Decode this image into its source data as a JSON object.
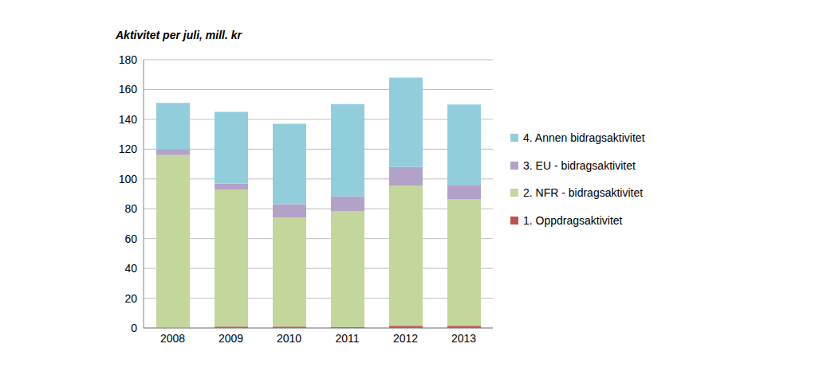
{
  "chart_data": {
    "type": "bar",
    "title": "Aktivitet per juli, mill. kr",
    "categories": [
      "2008",
      "2009",
      "2010",
      "2011",
      "2012",
      "2013"
    ],
    "series": [
      {
        "name": "1. Oppdragsaktivitet",
        "color": "#C0504D",
        "values": [
          0,
          1,
          1,
          0.7,
          1.5,
          1.5
        ]
      },
      {
        "name": "2. NFR - bidragsaktivitet",
        "color": "#C3D69B",
        "values": [
          116,
          92,
          73,
          77.5,
          94,
          85
        ]
      },
      {
        "name": "3. EU - bidragsaktivitet",
        "color": "#B3A2C7",
        "values": [
          4,
          4,
          9,
          10,
          12.5,
          9.5
        ]
      },
      {
        "name": "4. Annen bidragsaktivitet",
        "color": "#92CDDC",
        "values": [
          31,
          48,
          54,
          62,
          60,
          54
        ]
      }
    ],
    "ylim": [
      0,
      180
    ],
    "yticks": [
      0,
      20,
      40,
      60,
      80,
      100,
      120,
      140,
      160,
      180
    ],
    "stacked": true,
    "grid": true,
    "legend": "right"
  }
}
